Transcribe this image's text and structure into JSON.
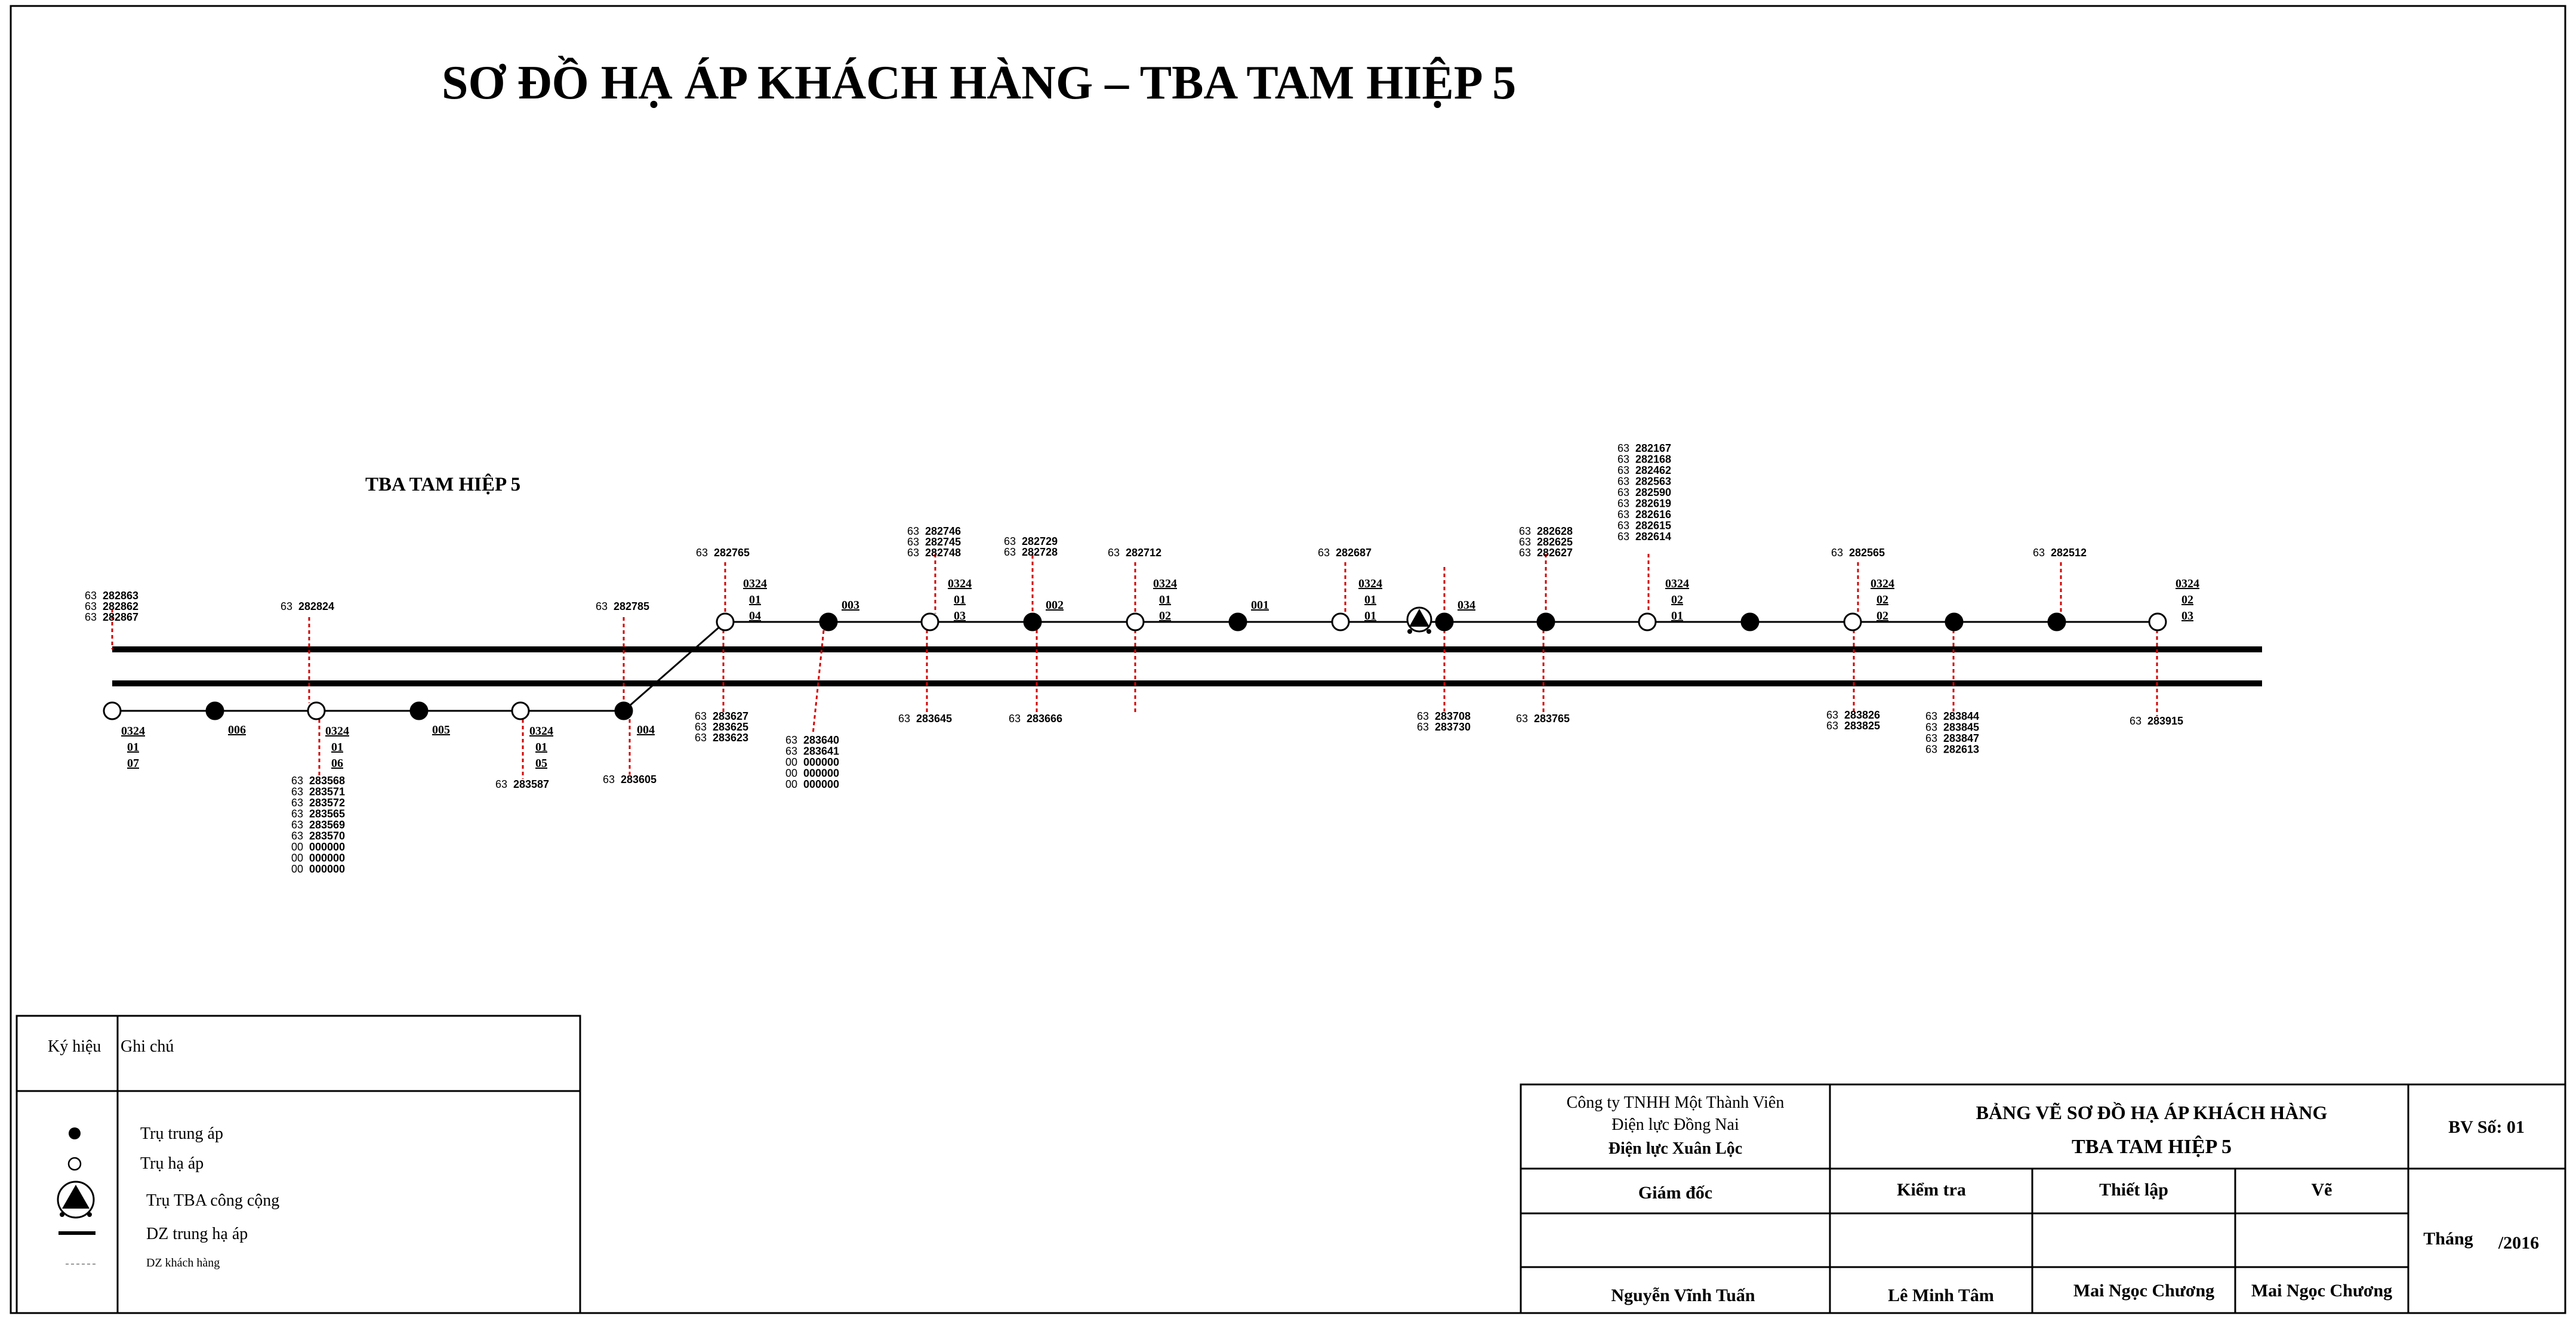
{
  "title": "SƠ ĐỒ HẠ ÁP KHÁCH HÀNG – TBA TAM HIỆP 5",
  "station_label": "TBA TAM HIỆP 5",
  "top_line": {
    "poles": [
      {
        "id": "top-1",
        "type": "low",
        "code": [
          "0324",
          "01",
          "04"
        ]
      },
      {
        "id": "top-2",
        "type": "medium",
        "label": "003"
      },
      {
        "id": "top-3",
        "type": "low",
        "code": [
          "0324",
          "01",
          "03"
        ]
      },
      {
        "id": "top-4",
        "type": "medium",
        "label": "002"
      },
      {
        "id": "top-5",
        "type": "low",
        "code": [
          "0324",
          "01",
          "02"
        ]
      },
      {
        "id": "top-6",
        "type": "medium",
        "label": "001"
      },
      {
        "id": "top-7",
        "type": "low",
        "code": [
          "0324",
          "01",
          "01"
        ]
      },
      {
        "id": "top-8",
        "type": "tba"
      },
      {
        "id": "top-9",
        "type": "medium",
        "label": "034"
      },
      {
        "id": "top-10",
        "type": "medium"
      },
      {
        "id": "top-11",
        "type": "low",
        "code": [
          "0324",
          "02",
          "01"
        ]
      },
      {
        "id": "top-12",
        "type": "medium"
      },
      {
        "id": "top-13",
        "type": "low",
        "code": [
          "0324",
          "02",
          "02"
        ]
      },
      {
        "id": "top-14",
        "type": "medium"
      },
      {
        "id": "top-15",
        "type": "medium"
      },
      {
        "id": "top-16",
        "type": "low",
        "code": [
          "0324",
          "02",
          "03"
        ]
      }
    ]
  },
  "bottom_line": {
    "poles": [
      {
        "id": "bot-1",
        "type": "low",
        "code": [
          "0324",
          "01",
          "07"
        ]
      },
      {
        "id": "bot-2",
        "type": "medium",
        "label": "006"
      },
      {
        "id": "bot-3",
        "type": "low",
        "code": [
          "0324",
          "01",
          "06"
        ]
      },
      {
        "id": "bot-4",
        "type": "medium",
        "label": "005"
      },
      {
        "id": "bot-5",
        "type": "low",
        "code": [
          "0324",
          "01",
          "05"
        ]
      },
      {
        "id": "bot-6",
        "type": "medium",
        "label": "004"
      }
    ]
  },
  "customer_groups": [
    {
      "id": "c1",
      "lines": [
        [
          "63",
          "282863"
        ],
        [
          "63",
          "282862"
        ],
        [
          "63",
          "282867"
        ]
      ]
    },
    {
      "id": "c2",
      "lines": [
        [
          "63",
          "282824"
        ]
      ]
    },
    {
      "id": "c3",
      "lines": [
        [
          "63",
          "282785"
        ]
      ]
    },
    {
      "id": "c4",
      "lines": [
        [
          "63",
          "282765"
        ]
      ]
    },
    {
      "id": "c5",
      "lines": [
        [
          "63",
          "282746"
        ],
        [
          "63",
          "282745"
        ],
        [
          "63",
          "282748"
        ]
      ]
    },
    {
      "id": "c6",
      "lines": [
        [
          "63",
          "282729"
        ],
        [
          "63",
          "282728"
        ]
      ]
    },
    {
      "id": "c7",
      "lines": [
        [
          "63",
          "282712"
        ]
      ]
    },
    {
      "id": "c8",
      "lines": [
        [
          "63",
          "282687"
        ]
      ]
    },
    {
      "id": "c9",
      "lines": [
        [
          "63",
          "282628"
        ],
        [
          "63",
          "282625"
        ],
        [
          "63",
          "282627"
        ]
      ]
    },
    {
      "id": "c10",
      "lines": [
        [
          "63",
          "282167"
        ],
        [
          "63",
          "282168"
        ],
        [
          "63",
          "282462"
        ],
        [
          "63",
          "282563"
        ],
        [
          "63",
          "282590"
        ],
        [
          "63",
          "282619"
        ],
        [
          "63",
          "282616"
        ],
        [
          "63",
          "282615"
        ],
        [
          "63",
          "282614"
        ]
      ]
    },
    {
      "id": "c11",
      "lines": [
        [
          "63",
          "282565"
        ]
      ]
    },
    {
      "id": "c12",
      "lines": [
        [
          "63",
          "282512"
        ]
      ]
    },
    {
      "id": "c13",
      "lines": [
        [
          "63",
          "283568"
        ],
        [
          "63",
          "283571"
        ],
        [
          "63",
          "283572"
        ],
        [
          "63",
          "283565"
        ],
        [
          "63",
          "283569"
        ],
        [
          "63",
          "283570"
        ],
        [
          "00",
          "000000"
        ],
        [
          "00",
          "000000"
        ],
        [
          "00",
          "000000"
        ]
      ]
    },
    {
      "id": "c14",
      "lines": [
        [
          "63",
          "283587"
        ]
      ]
    },
    {
      "id": "c15",
      "lines": [
        [
          "63",
          "283605"
        ]
      ]
    },
    {
      "id": "c16",
      "lines": [
        [
          "63",
          "283627"
        ],
        [
          "63",
          "283625"
        ],
        [
          "63",
          "283623"
        ]
      ]
    },
    {
      "id": "c17",
      "lines": [
        [
          "63",
          "283640"
        ],
        [
          "63",
          "283641"
        ],
        [
          "00",
          "000000"
        ],
        [
          "00",
          "000000"
        ],
        [
          "00",
          "000000"
        ]
      ]
    },
    {
      "id": "c18",
      "lines": [
        [
          "63",
          "283645"
        ]
      ]
    },
    {
      "id": "c19",
      "lines": [
        [
          "63",
          "283666"
        ]
      ]
    },
    {
      "id": "c20",
      "lines": [
        [
          "63",
          "283708"
        ],
        [
          "63",
          "283730"
        ]
      ]
    },
    {
      "id": "c21",
      "lines": [
        [
          "63",
          "283765"
        ]
      ]
    },
    {
      "id": "c22",
      "lines": [
        [
          "63",
          "283826"
        ],
        [
          "63",
          "283825"
        ]
      ]
    },
    {
      "id": "c23",
      "lines": [
        [
          "63",
          "283844"
        ],
        [
          "63",
          "283845"
        ],
        [
          "63",
          "283847"
        ],
        [
          "63",
          "282613"
        ]
      ]
    },
    {
      "id": "c24",
      "lines": [
        [
          "63",
          "283915"
        ]
      ]
    }
  ],
  "legend": {
    "header_symbol": "Ký hiệu",
    "header_note": "Ghi chú",
    "items": [
      {
        "icon": "medium-voltage-pole-icon",
        "label": "Trụ trung áp"
      },
      {
        "icon": "low-voltage-pole-icon",
        "label": "Trụ hạ áp"
      },
      {
        "icon": "public-substation-icon",
        "label": "Trụ TBA công cộng"
      },
      {
        "icon": "medium-low-voltage-line-icon",
        "label": "DZ trung hạ áp"
      },
      {
        "icon": "customer-line-icon",
        "label": "DZ khách hàng"
      }
    ]
  },
  "title_block": {
    "company_line1": "Công ty TNHH Một Thành Viên",
    "company_line2": "Điện lực Đồng Nai",
    "company_line3": "Điện lực Xuân Lộc",
    "drawing_title": "BẢNG VẼ SƠ ĐỒ HẠ ÁP KHÁCH HÀNG",
    "drawing_subtitle": "TBA TAM HIỆP 5",
    "sheet_no": "BV Số: 01",
    "role_director": "Giám đốc",
    "role_check": "Kiểm tra",
    "role_design": "Thiết lập",
    "role_draw": "Vẽ",
    "month_label": "Tháng",
    "year_label": "/2016",
    "name_director": "Nguyễn Vĩnh Tuấn",
    "name_check": "Lê Minh Tâm",
    "name_design": "Mai Ngọc Chương",
    "name_draw": "Mai Ngọc Chương"
  },
  "colors": {
    "line": "#000000",
    "customer_line": "#d40000",
    "background": "#ffffff"
  }
}
